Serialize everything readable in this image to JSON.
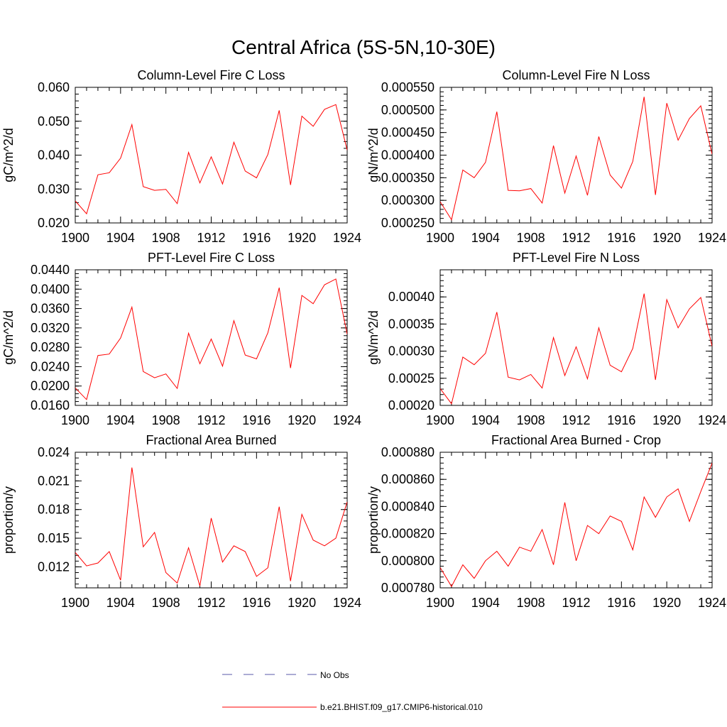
{
  "figure": {
    "title": "Central Africa (5S-5N,10-30E)",
    "line_color": "#ff0000",
    "obs_color": "#5a5aa8"
  },
  "legend": {
    "obs_label": "No Obs",
    "model_label": "b.e21.BHIST.f09_g17.CMIP6-historical.010"
  },
  "chart_data": [
    {
      "type": "line",
      "title": "Column-Level Fire C Loss",
      "ylabel": "gC/m^2/d",
      "x": [
        1900,
        1901,
        1902,
        1903,
        1904,
        1905,
        1906,
        1907,
        1908,
        1909,
        1910,
        1911,
        1912,
        1913,
        1914,
        1915,
        1916,
        1917,
        1918,
        1919,
        1920,
        1921,
        1922,
        1923,
        1924
      ],
      "xlim": [
        1900,
        1924
      ],
      "xticks": [
        "1900",
        "1904",
        "1908",
        "1912",
        "1916",
        "1920",
        "1924"
      ],
      "ylim": [
        0.02,
        0.06
      ],
      "yticks": [
        "0.020",
        "0.030",
        "0.040",
        "0.050",
        "0.060"
      ],
      "series": [
        {
          "name": "b.e21.BHIST.f09_g17.CMIP6-historical.010",
          "values": [
            0.0265,
            0.0227,
            0.0342,
            0.0348,
            0.0391,
            0.049,
            0.0307,
            0.0296,
            0.0299,
            0.0257,
            0.0408,
            0.0318,
            0.0395,
            0.0315,
            0.0438,
            0.0353,
            0.0333,
            0.0402,
            0.0532,
            0.0312,
            0.0515,
            0.0485,
            0.0535,
            0.0549,
            0.0415
          ]
        }
      ]
    },
    {
      "type": "line",
      "title": "Column-Level Fire N Loss",
      "ylabel": "gN/m^2/d",
      "x": [
        1900,
        1901,
        1902,
        1903,
        1904,
        1905,
        1906,
        1907,
        1908,
        1909,
        1910,
        1911,
        1912,
        1913,
        1914,
        1915,
        1916,
        1917,
        1918,
        1919,
        1920,
        1921,
        1922,
        1923,
        1924
      ],
      "xlim": [
        1900,
        1924
      ],
      "xticks": [
        "1900",
        "1904",
        "1908",
        "1912",
        "1916",
        "1920",
        "1924"
      ],
      "ylim": [
        0.00025,
        0.00055
      ],
      "yticks": [
        "0.000250",
        "0.000300",
        "0.000350",
        "0.000400",
        "0.000450",
        "0.000500",
        "0.000550"
      ],
      "series": [
        {
          "name": "b.e21.BHIST.f09_g17.CMIP6-historical.010",
          "values": [
            0.000297,
            0.000257,
            0.000367,
            0.00035,
            0.000384,
            0.000496,
            0.000322,
            0.000321,
            0.000326,
            0.000294,
            0.000421,
            0.000316,
            0.000398,
            0.000311,
            0.000441,
            0.000356,
            0.000327,
            0.000386,
            0.000529,
            0.000312,
            0.000515,
            0.000433,
            0.000481,
            0.000509,
            0.000402
          ]
        }
      ]
    },
    {
      "type": "line",
      "title": "PFT-Level Fire C Loss",
      "ylabel": "gC/m^2/d",
      "x": [
        1900,
        1901,
        1902,
        1903,
        1904,
        1905,
        1906,
        1907,
        1908,
        1909,
        1910,
        1911,
        1912,
        1913,
        1914,
        1915,
        1916,
        1917,
        1918,
        1919,
        1920,
        1921,
        1922,
        1923,
        1924
      ],
      "xlim": [
        1900,
        1924
      ],
      "xticks": [
        "1900",
        "1904",
        "1908",
        "1912",
        "1916",
        "1920",
        "1924"
      ],
      "ylim": [
        0.016,
        0.044
      ],
      "yticks": [
        "0.0160",
        "0.0200",
        "0.0240",
        "0.0280",
        "0.0320",
        "0.0360",
        "0.0400",
        "0.0440"
      ],
      "series": [
        {
          "name": "b.e21.BHIST.f09_g17.CMIP6-historical.010",
          "values": [
            0.0196,
            0.0172,
            0.0263,
            0.0266,
            0.0299,
            0.0363,
            0.023,
            0.0217,
            0.0225,
            0.0195,
            0.0309,
            0.0246,
            0.0297,
            0.0241,
            0.0335,
            0.0264,
            0.0256,
            0.031,
            0.0403,
            0.0237,
            0.0387,
            0.037,
            0.0409,
            0.0421,
            0.0307
          ]
        }
      ]
    },
    {
      "type": "line",
      "title": "PFT-Level Fire N Loss",
      "ylabel": "gN/m^2/d",
      "x": [
        1900,
        1901,
        1902,
        1903,
        1904,
        1905,
        1906,
        1907,
        1908,
        1909,
        1910,
        1911,
        1912,
        1913,
        1914,
        1915,
        1916,
        1917,
        1918,
        1919,
        1920,
        1921,
        1922,
        1923,
        1924
      ],
      "xlim": [
        1900,
        1924
      ],
      "xticks": [
        "1900",
        "1904",
        "1908",
        "1912",
        "1916",
        "1920",
        "1924"
      ],
      "ylim": [
        0.0002,
        0.00045
      ],
      "yticks": [
        "0.00020",
        "0.00025",
        "0.00030",
        "0.00035",
        "0.00040"
      ],
      "series": [
        {
          "name": "b.e21.BHIST.f09_g17.CMIP6-historical.010",
          "values": [
            0.000231,
            0.000203,
            0.000289,
            0.000275,
            0.000296,
            0.000372,
            0.000252,
            0.000247,
            0.000257,
            0.000232,
            0.000325,
            0.000255,
            0.000308,
            0.000249,
            0.000343,
            0.000274,
            0.000262,
            0.000305,
            0.000406,
            0.000247,
            0.000395,
            0.000343,
            0.000378,
            0.000399,
            0.000309
          ]
        }
      ]
    },
    {
      "type": "line",
      "title": "Fractional Area Burned",
      "ylabel": "proportion/y",
      "x": [
        1900,
        1901,
        1902,
        1903,
        1904,
        1905,
        1906,
        1907,
        1908,
        1909,
        1910,
        1911,
        1912,
        1913,
        1914,
        1915,
        1916,
        1917,
        1918,
        1919,
        1920,
        1921,
        1922,
        1923,
        1924
      ],
      "xlim": [
        1900,
        1924
      ],
      "xticks": [
        "1900",
        "1904",
        "1908",
        "1912",
        "1916",
        "1920",
        "1924"
      ],
      "ylim": [
        0.0098,
        0.024
      ],
      "yticks": [
        "0.012",
        "0.015",
        "0.018",
        "0.021",
        "0.024"
      ],
      "series": [
        {
          "name": "b.e21.BHIST.f09_g17.CMIP6-historical.010",
          "values": [
            0.0135,
            0.0121,
            0.0124,
            0.0136,
            0.0106,
            0.0224,
            0.0141,
            0.0156,
            0.0114,
            0.0103,
            0.014,
            0.01,
            0.0171,
            0.0125,
            0.0142,
            0.0136,
            0.011,
            0.0119,
            0.0183,
            0.0105,
            0.0175,
            0.0148,
            0.0142,
            0.015,
            0.0188
          ]
        }
      ]
    },
    {
      "type": "line",
      "title": "Fractional Area Burned - Crop",
      "ylabel": "proportion/y",
      "x": [
        1900,
        1901,
        1902,
        1903,
        1904,
        1905,
        1906,
        1907,
        1908,
        1909,
        1910,
        1911,
        1912,
        1913,
        1914,
        1915,
        1916,
        1917,
        1918,
        1919,
        1920,
        1921,
        1922,
        1923,
        1924
      ],
      "xlim": [
        1900,
        1924
      ],
      "xticks": [
        "1900",
        "1904",
        "1908",
        "1912",
        "1916",
        "1920",
        "1924"
      ],
      "ylim": [
        0.00078,
        0.00088
      ],
      "yticks": [
        "0.000780",
        "0.000800",
        "0.000820",
        "0.000840",
        "0.000860",
        "0.000880"
      ],
      "series": [
        {
          "name": "b.e21.BHIST.f09_g17.CMIP6-historical.010",
          "values": [
            0.000795,
            0.000781,
            0.000797,
            0.000787,
            0.0008,
            0.000807,
            0.000796,
            0.00081,
            0.000807,
            0.000823,
            0.000797,
            0.000843,
            0.0008,
            0.000826,
            0.00082,
            0.000833,
            0.000829,
            0.000808,
            0.000847,
            0.000832,
            0.000847,
            0.000853,
            0.000829,
            0.000851,
            0.000872
          ]
        }
      ]
    }
  ]
}
